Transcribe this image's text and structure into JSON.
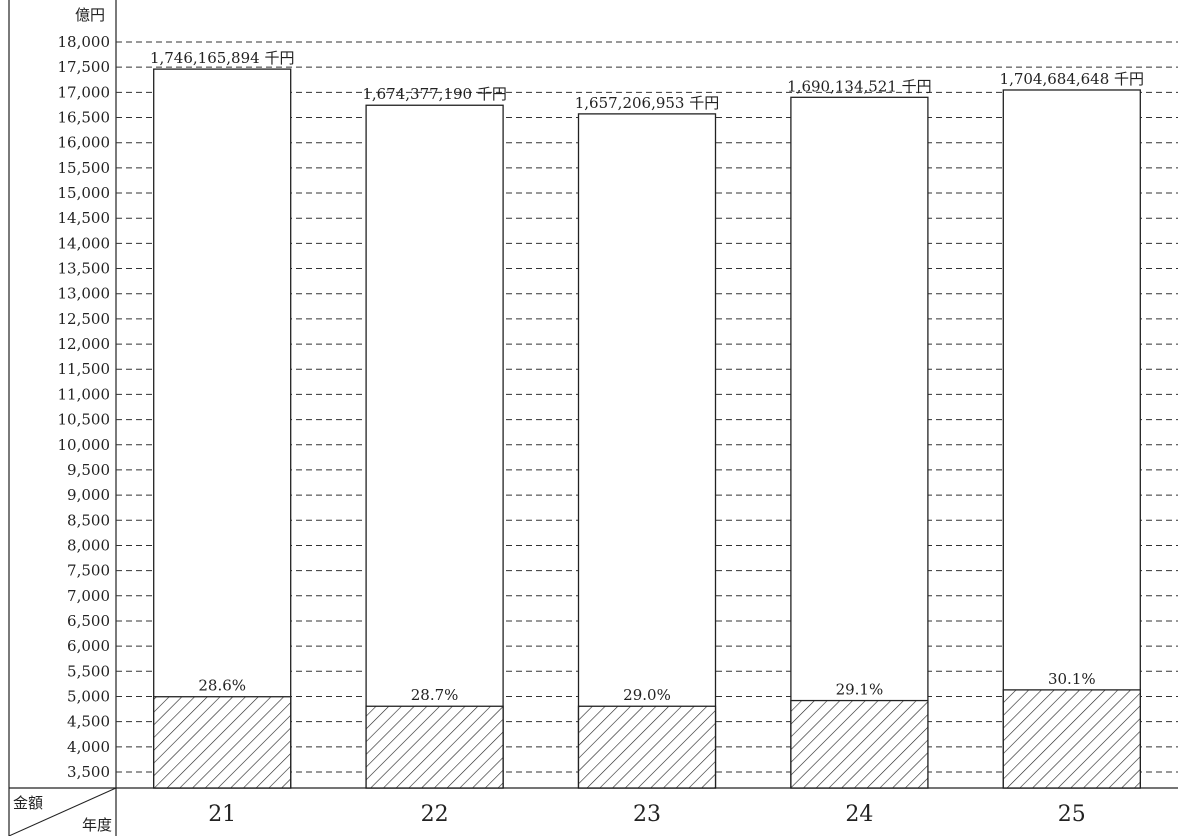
{
  "chart_data": {
    "type": "bar",
    "y_unit": "億円",
    "corner_top": "金額",
    "corner_bottom": "年度",
    "categories": [
      "21",
      "22",
      "23",
      "24",
      "25"
    ],
    "totals": [
      17461.65894,
      16743.7719,
      16572.06953,
      16901.34521,
      17046.84648
    ],
    "total_labels": [
      "1,746,165,894 千円",
      "1,674,377,190 千円",
      "1,657,206,953 千円",
      "1,690,134,521 千円",
      "1,704,684,648 千円"
    ],
    "shares": [
      4995,
      4806,
      4806,
      4919,
      5131
    ],
    "share_labels": [
      "28.6%",
      "28.7%",
      "29.0%",
      "29.1%",
      "30.1%"
    ],
    "ylim": [
      3300,
      18000
    ],
    "ytick_values": [
      3500,
      4000,
      4500,
      5000,
      5500,
      6000,
      6500,
      7000,
      7500,
      8000,
      8500,
      9000,
      9500,
      10000,
      10500,
      11000,
      11500,
      12000,
      12500,
      13000,
      13500,
      14000,
      14500,
      15000,
      15500,
      16000,
      16500,
      17000,
      17500,
      18000
    ],
    "ytick_labels": [
      "3,500",
      "4,000",
      "4,500",
      "5,000",
      "5,500",
      "6,000",
      "6,500",
      "7,000",
      "7,500",
      "8,000",
      "8,500",
      "9,000",
      "9,500",
      "10,000",
      "10,500",
      "11,000",
      "11,500",
      "12,000",
      "12,500",
      "13,000",
      "13,500",
      "14,000",
      "14,500",
      "15,000",
      "15,500",
      "16,000",
      "16,500",
      "17,000",
      "17,500",
      "18,000"
    ],
    "grid": true,
    "colors": {
      "bar_fill": "#ffffff",
      "stroke": "#222222",
      "hatch": "#222222",
      "grid": "#333333"
    }
  }
}
